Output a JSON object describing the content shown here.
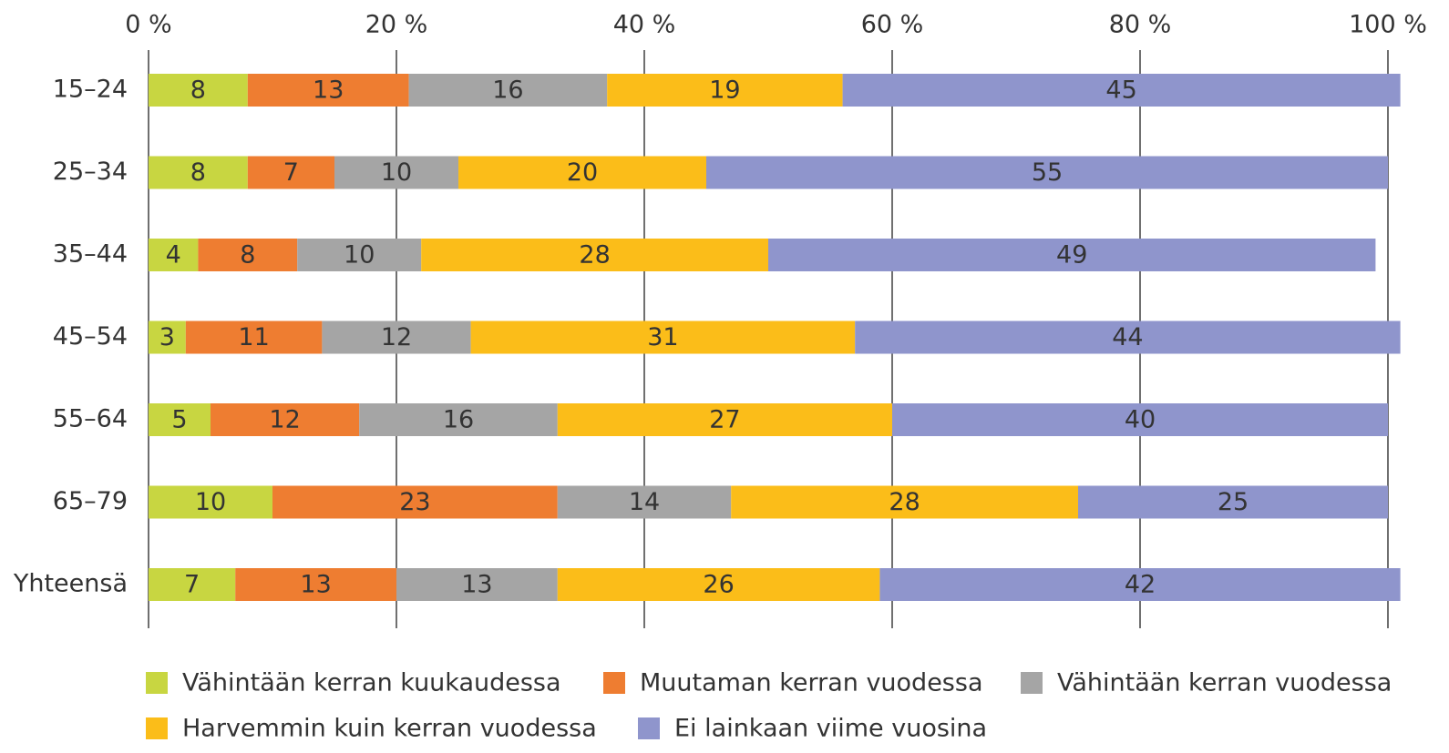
{
  "chart_data": {
    "type": "stacked-barh",
    "categories": [
      "15–24",
      "25–34",
      "35–44",
      "45–54",
      "55–64",
      "65–79",
      "Yhteensä"
    ],
    "series": [
      {
        "name": "Vähintään kerran kuukaudessa",
        "color": "#c8d641",
        "values": [
          8,
          8,
          4,
          3,
          5,
          10,
          7
        ]
      },
      {
        "name": "Muutaman kerran vuodessa",
        "color": "#ee7d31",
        "values": [
          13,
          7,
          8,
          11,
          12,
          23,
          13
        ]
      },
      {
        "name": "Vähintään kerran vuodessa",
        "color": "#a5a5a5",
        "values": [
          16,
          10,
          10,
          12,
          16,
          14,
          13
        ]
      },
      {
        "name": "Harvemmin kuin kerran vuodessa",
        "color": "#fbbd19",
        "values": [
          19,
          20,
          28,
          31,
          27,
          28,
          26
        ]
      },
      {
        "name": "Ei lainkaan viime vuosina",
        "color": "#8f95cc",
        "values": [
          45,
          55,
          49,
          44,
          40,
          25,
          42
        ]
      }
    ],
    "xlim": [
      0,
      100
    ],
    "xticks": [
      {
        "value": 0,
        "label": "0 %"
      },
      {
        "value": 20,
        "label": "20 %"
      },
      {
        "value": 40,
        "label": "40 %"
      },
      {
        "value": 60,
        "label": "60 %"
      },
      {
        "value": 80,
        "label": "80 %"
      },
      {
        "value": 100,
        "label": "100 %"
      }
    ],
    "grid": true,
    "legend": "bottom"
  }
}
